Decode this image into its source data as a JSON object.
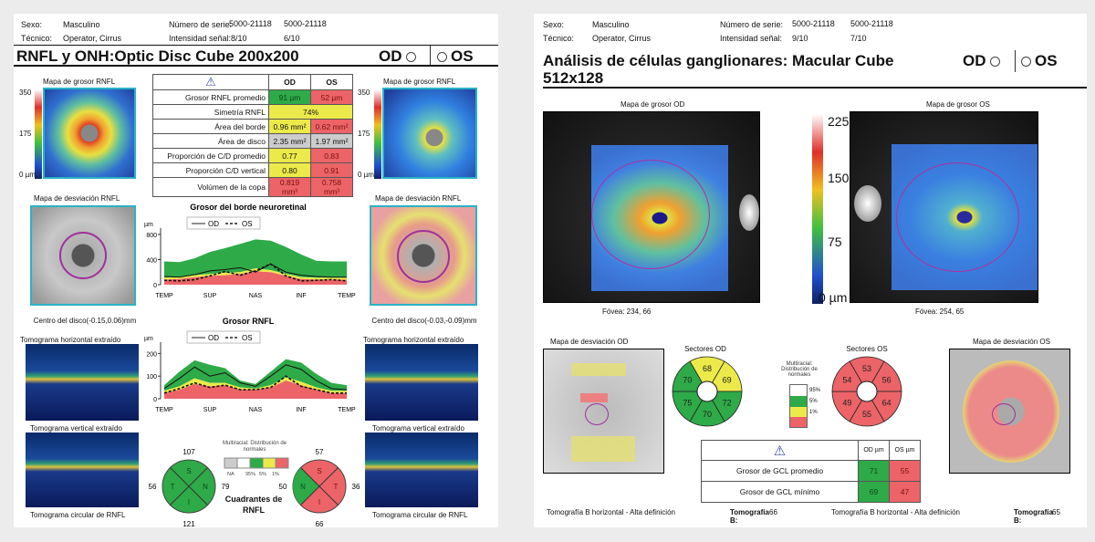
{
  "left": {
    "sexo_label": "Sexo:",
    "sexo": "Masculino",
    "tecnico_label": "Técnico:",
    "tecnico": "Operator, Cirrus",
    "serie_label": "Número de serie:",
    "serie_od": "5000-21118",
    "serie_os": "5000-21118",
    "intensidad_label": "Intensidad  señal:",
    "int_od": "8/10",
    "int_os": "6/10",
    "title": "RNFL y ONH:Optic Disc Cube 200x200",
    "od": "OD",
    "os": "OS",
    "map_title": "Mapa de grosor RNFL",
    "scale": [
      "350",
      "175",
      "0 µm"
    ],
    "table": {
      "headers": [
        "OD",
        "OS"
      ],
      "rows": [
        {
          "label": "Grosor RNFL promedio",
          "od": "91 µm",
          "os": "52 µm",
          "c": [
            "g",
            "r"
          ]
        },
        {
          "label": "Simetría RNFL",
          "both": "74%",
          "c": [
            "y"
          ]
        },
        {
          "label": "Área del borde",
          "od": "0.96 mm²",
          "os": "0.62 mm²",
          "c": [
            "y",
            "r"
          ]
        },
        {
          "label": "Área de disco",
          "od": "2.35 mm²",
          "os": "1.97 mm²",
          "c": [
            "gr",
            "gr"
          ]
        },
        {
          "label": "Proporción de C/D promedio",
          "od": "0.77",
          "os": "0.83",
          "c": [
            "y",
            "r"
          ]
        },
        {
          "label": "Proporción C/D vertical",
          "od": "0.80",
          "os": "0.91",
          "c": [
            "y",
            "r"
          ]
        },
        {
          "label": "Volúmen de la copa",
          "od": "0.819 mm³",
          "os": "0.758 mm³",
          "c": [
            "r",
            "r"
          ]
        }
      ]
    },
    "dev_title": "Mapa de desviación RNFL",
    "center_od": "Centro del disco(-0.15,0.06)mm",
    "center_os": "Centro del disco(-0.03,-0.09)mm",
    "tomo_h": "Tomograma horizontal extraído",
    "tomo_v": "Tomograma vertical extraído",
    "tomo_c": "Tomograma circular de RNFL",
    "quad_title": "Cuadrantes de RNFL",
    "legend_title": "Multiracial: Distribución de normales",
    "legend_labels": [
      "NA",
      "95%",
      "5%",
      "1%"
    ],
    "quad_od": {
      "S": "107",
      "T": "56",
      "N": "79",
      "I": "121",
      "letters": [
        "S",
        "T",
        "N",
        "I"
      ]
    },
    "quad_os": {
      "S": "57",
      "N": "50",
      "T": "36",
      "I": "66",
      "letters": [
        "S",
        "N",
        "T",
        "I"
      ]
    }
  },
  "chart_data": [
    {
      "type": "area",
      "title": "Grosor del borde neuroretinal",
      "ylabel": "µm",
      "ylim": [
        0,
        900
      ],
      "yticks": [
        "800",
        "400",
        "0"
      ],
      "categories": [
        "TEMP",
        "SUP",
        "NAS",
        "INF",
        "TEMP"
      ],
      "legend": [
        "OD",
        "OS"
      ],
      "p1": [
        80,
        90,
        120,
        140,
        150,
        170,
        210,
        200,
        140,
        90,
        80,
        80,
        80
      ],
      "p5": [
        110,
        120,
        150,
        170,
        190,
        200,
        260,
        230,
        170,
        120,
        110,
        110,
        110
      ],
      "p95": [
        370,
        360,
        420,
        520,
        580,
        650,
        720,
        700,
        600,
        480,
        380,
        370,
        370
      ],
      "od": [
        130,
        120,
        160,
        220,
        240,
        270,
        200,
        330,
        200,
        150,
        130,
        120,
        120
      ],
      "os": [
        70,
        60,
        80,
        140,
        210,
        150,
        220,
        330,
        140,
        60,
        70,
        80,
        60
      ]
    },
    {
      "type": "area",
      "title": "Grosor RNFL",
      "ylabel": "µm",
      "ylim": [
        0,
        250
      ],
      "yticks": [
        "200",
        "100",
        "0"
      ],
      "categories": [
        "TEMP",
        "SUP",
        "NAS",
        "INF",
        "TEMP"
      ],
      "legend": [
        "OD",
        "OS"
      ],
      "p1": [
        25,
        40,
        65,
        55,
        60,
        40,
        40,
        50,
        80,
        60,
        40,
        25,
        25
      ],
      "p5": [
        35,
        55,
        90,
        70,
        70,
        50,
        45,
        60,
        95,
        75,
        50,
        35,
        35
      ],
      "p95": [
        60,
        120,
        170,
        150,
        135,
        80,
        65,
        120,
        175,
        160,
        110,
        70,
        60
      ],
      "od": [
        45,
        90,
        140,
        100,
        115,
        70,
        55,
        100,
        150,
        130,
        80,
        45,
        40
      ],
      "os": [
        25,
        45,
        70,
        50,
        60,
        40,
        40,
        50,
        100,
        55,
        40,
        25,
        25
      ]
    }
  ],
  "right": {
    "sexo_label": "Sexo:",
    "sexo": "Masculino",
    "tecnico_label": "Técnico:",
    "tecnico": "Operator, Cirrus",
    "serie_label": "Número de serie:",
    "serie_od": "5000-21118",
    "serie_os": "5000-21118",
    "intensidad_label": "Intensidad  señal:",
    "int_od": "9/10",
    "int_os": "7/10",
    "title": "Análisis de células ganglionares: Macular Cube 512x128",
    "od": "OD",
    "os": "OS",
    "map_od": "Mapa de grosor OD",
    "map_os": "Mapa de grosor OS",
    "scale": [
      "225",
      "150",
      "75",
      "0 µm"
    ],
    "fovea_od": "Fóvea: 234, 66",
    "fovea_os": "Fóvea: 254, 65",
    "dev_od": "Mapa de desviación OD",
    "dev_os": "Mapa de desviación OS",
    "sect_od_title": "Sectores OD",
    "sect_os_title": "Sectores OS",
    "sect_od": [
      "68",
      "69",
      "72",
      "70",
      "75",
      "70"
    ],
    "sect_od_c": [
      "y",
      "y",
      "g",
      "g",
      "g",
      "g"
    ],
    "sect_os": [
      "53",
      "56",
      "64",
      "55",
      "49",
      "54"
    ],
    "legend_title": "Multiracial: Distribución de normales",
    "legend_labels": [
      "95%",
      "5%",
      "1%"
    ],
    "table": {
      "headers": [
        "OD µm",
        "OS µm"
      ],
      "rows": [
        {
          "label": "Grosor de GCL promedio",
          "od": "71",
          "os": "55"
        },
        {
          "label": "Grosor de GCL mínimo",
          "od": "69",
          "os": "47"
        }
      ]
    },
    "tomo": "Tomografía B horizontal - Alta definición",
    "tomo_b": "Tomografía B:",
    "tomo_od": "66",
    "tomo_os": "65"
  },
  "colors": {
    "green": "#2eaa48",
    "yellow": "#ecea4a",
    "red": "#ec6467",
    "accent": "#2ab2c6"
  }
}
